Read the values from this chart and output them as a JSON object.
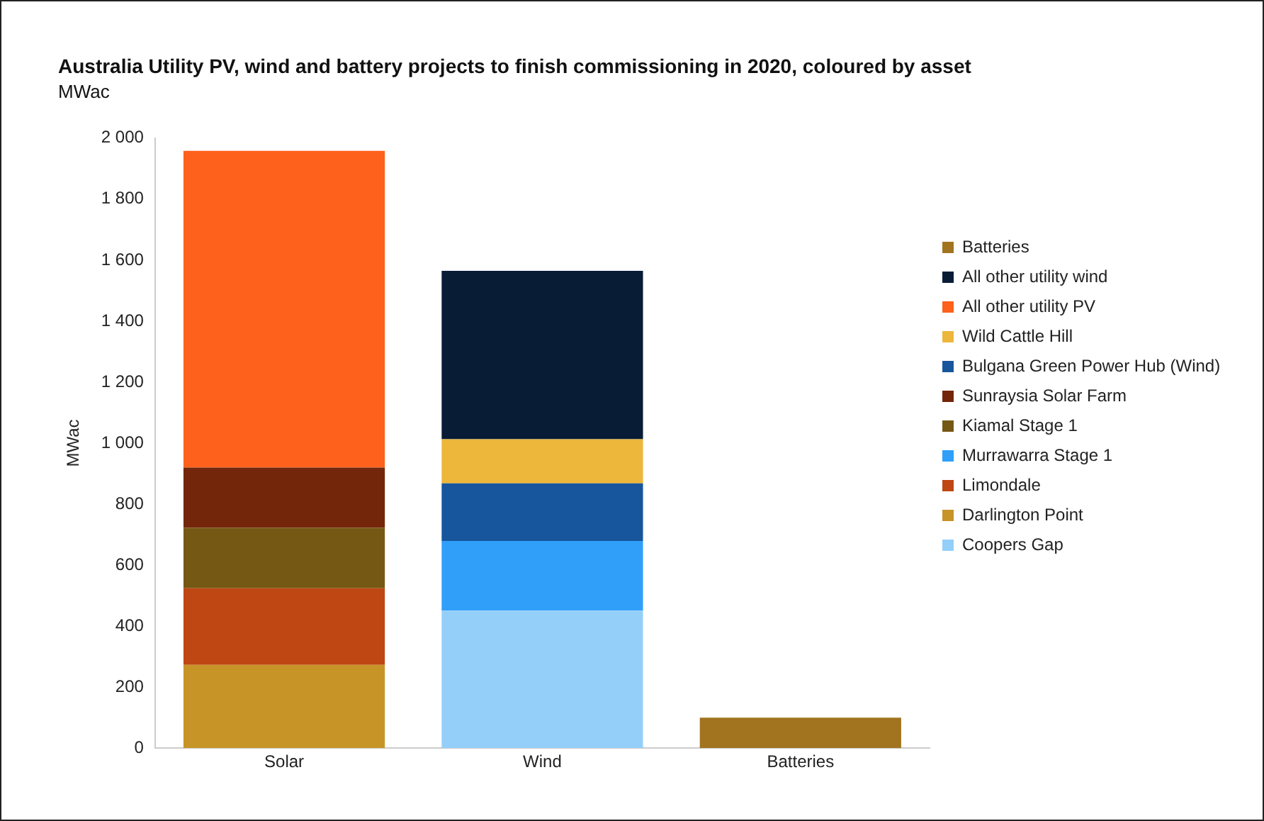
{
  "chart_data": {
    "type": "bar",
    "stacked": true,
    "title": "Australia Utility PV, wind and battery projects to finish commissioning in 2020, coloured by asset",
    "subtitle": "MWac",
    "ylabel": "MWac",
    "categories": [
      "Solar",
      "Wind",
      "Batteries"
    ],
    "series": [
      {
        "name": "Coopers Gap",
        "color": "#94cff9",
        "values": [
          null,
          451,
          null
        ]
      },
      {
        "name": "Darlington Point",
        "color": "#c79428",
        "values": [
          273,
          null,
          null
        ]
      },
      {
        "name": "Limondale",
        "color": "#bf4713",
        "values": [
          251,
          null,
          null
        ]
      },
      {
        "name": "Murrawarra Stage 1",
        "color": "#2f9ffa",
        "values": [
          null,
          228,
          null
        ]
      },
      {
        "name": "Kiamal Stage 1",
        "color": "#765815",
        "values": [
          198,
          null,
          null
        ]
      },
      {
        "name": "Sunraysia Solar Farm",
        "color": "#732609",
        "values": [
          198,
          null,
          null
        ]
      },
      {
        "name": "Bulgana Green Power Hub (Wind)",
        "color": "#17569c",
        "values": [
          null,
          189,
          null
        ]
      },
      {
        "name": "Wild Cattle Hill",
        "color": "#ecb73a",
        "values": [
          null,
          145,
          null
        ]
      },
      {
        "name": "All other utility PV",
        "color": "#fd611b",
        "values": [
          1038,
          null,
          null
        ]
      },
      {
        "name": "All other utility wind",
        "color": "#081c36",
        "values": [
          null,
          552,
          null
        ]
      },
      {
        "name": "Batteries",
        "color": "#a27420",
        "values": [
          null,
          null,
          100
        ]
      }
    ],
    "ylim": [
      0,
      2000
    ],
    "yticks": [
      0,
      200,
      400,
      600,
      800,
      {
        "value": 1000,
        "label": "1 000"
      },
      {
        "value": 1200,
        "label": "1 200"
      },
      {
        "value": 1400,
        "label": "1 400"
      },
      {
        "value": 1600,
        "label": "1 600"
      },
      {
        "value": 1800,
        "label": "1 800"
      },
      {
        "value": 2000,
        "label": "2 000"
      }
    ],
    "grid": false,
    "legend": "right"
  }
}
